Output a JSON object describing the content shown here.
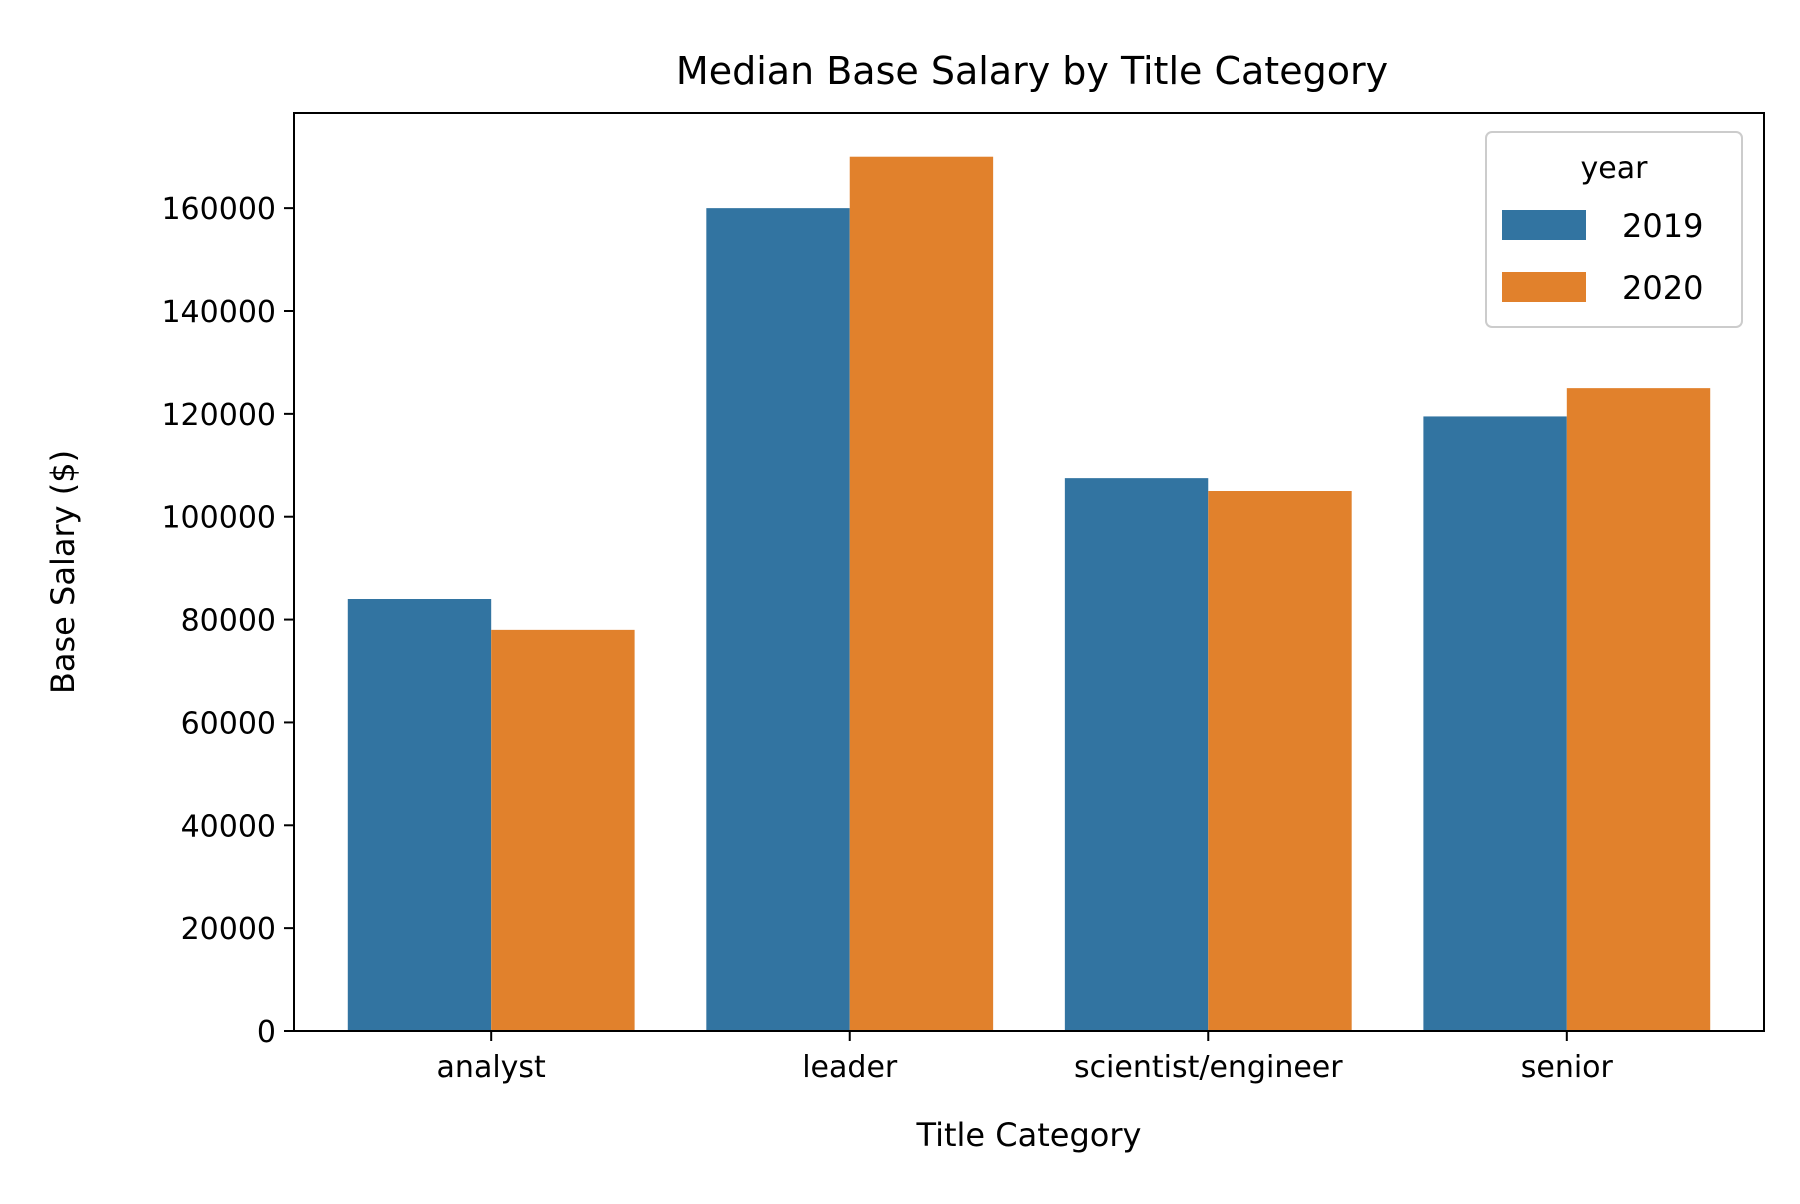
{
  "chart_data": {
    "type": "bar",
    "title": "Median Base Salary by Title Category",
    "xlabel": "Title Category",
    "ylabel": "Base Salary ($)",
    "categories": [
      "analyst",
      "leader",
      "scientist/engineer",
      "senior"
    ],
    "series": [
      {
        "name": "2019",
        "color": "#3274a1",
        "values": [
          84000,
          160000,
          107500,
          119500
        ]
      },
      {
        "name": "2020",
        "color": "#e1812c",
        "values": [
          78000,
          170000,
          105000,
          125000
        ]
      }
    ],
    "ylim": [
      0,
      178500
    ],
    "yticks": [
      0,
      20000,
      40000,
      60000,
      80000,
      100000,
      120000,
      140000,
      160000
    ],
    "legend": {
      "title": "year",
      "position": "top-right"
    },
    "grid": false
  }
}
